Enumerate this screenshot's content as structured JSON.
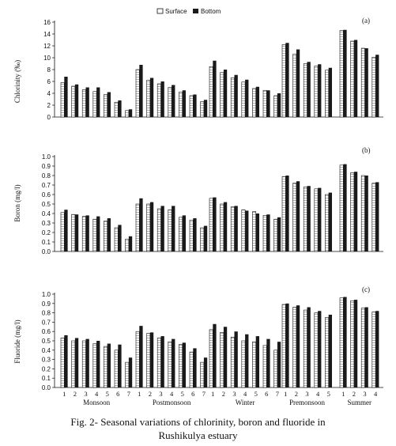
{
  "legend": {
    "surface_label": "Surface",
    "bottom_label": "Bottom"
  },
  "caption": {
    "line1": "Fig. 2- Seasonal variations of chlorinity, boron and fluoride in",
    "line2": "Rushikulya estuary"
  },
  "colors": {
    "surface": "#ffffff",
    "bottom": "#1a1a1a",
    "axis": "#111111"
  },
  "chart_data": [
    {
      "type": "bar",
      "panel_label": "(a)",
      "ylabel": "Chlorinity (‰)",
      "ylim": [
        0,
        16
      ],
      "yticks": [
        "0",
        "2",
        "4",
        "6",
        "8",
        "10",
        "12",
        "14",
        "16"
      ],
      "seasons": [
        "Monsoon",
        "Postmonsoon",
        "Winter",
        "Premonsoon",
        "Summer"
      ],
      "series": [
        {
          "name": "Surface",
          "groups": [
            [
              5.8,
              5.2,
              4.6,
              4.3,
              3.8,
              2.5,
              1.1
            ],
            [
              8.0,
              6.2,
              5.6,
              5.0,
              4.2,
              3.6,
              2.6
            ],
            [
              8.5,
              7.5,
              6.6,
              5.9,
              4.8,
              4.5,
              3.6
            ],
            [
              12.2,
              10.6,
              9.0,
              8.6,
              7.9
            ],
            [
              14.6,
              12.8,
              11.6,
              10.1
            ]
          ]
        },
        {
          "name": "Bottom",
          "groups": [
            [
              6.8,
              5.5,
              5.0,
              5.0,
              4.2,
              2.8,
              1.3
            ],
            [
              8.8,
              6.6,
              6.0,
              5.4,
              4.5,
              3.8,
              2.9
            ],
            [
              9.5,
              8.0,
              7.1,
              6.3,
              5.1,
              4.5,
              4.0
            ],
            [
              12.5,
              11.4,
              9.3,
              8.9,
              8.3
            ],
            [
              14.7,
              13.0,
              11.6,
              10.5
            ]
          ]
        }
      ]
    },
    {
      "type": "bar",
      "panel_label": "(b)",
      "ylabel": "Boron (mg/l)",
      "ylim": [
        0,
        1.0
      ],
      "yticks": [
        "0.0",
        "0.1",
        "0.2",
        "0.3",
        "0.4",
        "0.5",
        "0.6",
        "0.7",
        "0.8",
        "0.9",
        "1.0"
      ],
      "seasons": [
        "Monsoon",
        "Postmonsoon",
        "Winter",
        "Premonsoon",
        "Summer"
      ],
      "series": [
        {
          "name": "Surface",
          "groups": [
            [
              0.41,
              0.39,
              0.37,
              0.34,
              0.32,
              0.25,
              0.13
            ],
            [
              0.5,
              0.5,
              0.45,
              0.44,
              0.36,
              0.33,
              0.25
            ],
            [
              0.56,
              0.5,
              0.47,
              0.44,
              0.42,
              0.38,
              0.34
            ],
            [
              0.79,
              0.72,
              0.68,
              0.66,
              0.6
            ],
            [
              0.91,
              0.83,
              0.8,
              0.72
            ]
          ]
        },
        {
          "name": "Bottom",
          "groups": [
            [
              0.44,
              0.39,
              0.38,
              0.37,
              0.35,
              0.28,
              0.16
            ],
            [
              0.56,
              0.52,
              0.48,
              0.48,
              0.38,
              0.35,
              0.27
            ],
            [
              0.57,
              0.52,
              0.48,
              0.43,
              0.4,
              0.39,
              0.36
            ],
            [
              0.8,
              0.74,
              0.69,
              0.67,
              0.62
            ],
            [
              0.92,
              0.84,
              0.8,
              0.73
            ]
          ]
        }
      ]
    },
    {
      "type": "bar",
      "panel_label": "(c)",
      "ylabel": "Fluoride (mg/l)",
      "ylim": [
        0,
        1.0
      ],
      "yticks": [
        "0.0",
        "0.1",
        "0.2",
        "0.3",
        "0.4",
        "0.5",
        "0.6",
        "0.7",
        "0.8",
        "0.9",
        "1.0"
      ],
      "seasons": [
        "Monsoon",
        "Postmonsoon",
        "Winter",
        "Premonsoon",
        "Summer"
      ],
      "stations": [
        [
          "1",
          "2",
          "3",
          "4",
          "5",
          "6",
          "7"
        ],
        [
          "1",
          "2",
          "3",
          "4",
          "5",
          "6",
          "7"
        ],
        [
          "1",
          "2",
          "3",
          "4",
          "5",
          "6",
          "7"
        ],
        [
          "1",
          "2",
          "3",
          "4",
          "5"
        ],
        [
          "1",
          "2",
          "3",
          "4"
        ]
      ],
      "series": [
        {
          "name": "Surface",
          "groups": [
            [
              0.53,
              0.5,
              0.5,
              0.47,
              0.44,
              0.4,
              0.27
            ],
            [
              0.6,
              0.58,
              0.53,
              0.49,
              0.46,
              0.38,
              0.27
            ],
            [
              0.62,
              0.59,
              0.54,
              0.5,
              0.49,
              0.45,
              0.4
            ],
            [
              0.89,
              0.86,
              0.83,
              0.8,
              0.75
            ],
            [
              0.96,
              0.93,
              0.85,
              0.81
            ]
          ]
        },
        {
          "name": "Bottom",
          "groups": [
            [
              0.56,
              0.53,
              0.52,
              0.5,
              0.47,
              0.46,
              0.32
            ],
            [
              0.66,
              0.59,
              0.55,
              0.52,
              0.48,
              0.42,
              0.32
            ],
            [
              0.68,
              0.65,
              0.6,
              0.57,
              0.55,
              0.52,
              0.49
            ],
            [
              0.9,
              0.88,
              0.86,
              0.82,
              0.78
            ],
            [
              0.97,
              0.94,
              0.86,
              0.82
            ]
          ]
        }
      ]
    }
  ]
}
